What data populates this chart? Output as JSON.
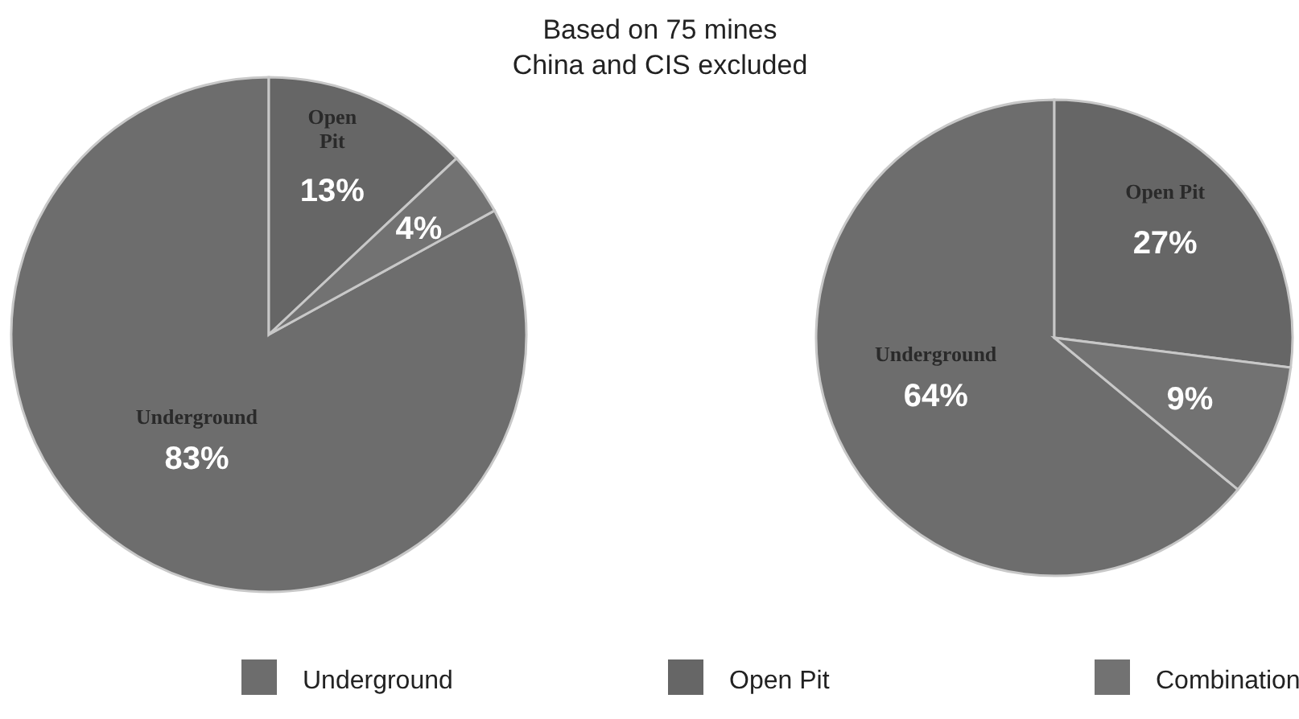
{
  "chart_data": [
    {
      "type": "pie",
      "title": "Based on 75 mines\nChina and CIS excluded",
      "categories": [
        "Underground",
        "Open Pit",
        null
      ],
      "values": [
        83,
        13,
        4
      ],
      "colors": [
        "#6d6d6d",
        "#666666",
        "#727272"
      ],
      "value_labels": [
        "83%",
        "13%",
        "4%"
      ]
    },
    {
      "type": "pie",
      "categories": [
        "Underground",
        "Open Pit",
        "Combination"
      ],
      "values": [
        64,
        27,
        9
      ],
      "colors": [
        "#6d6d6d",
        "#666666",
        "#727272"
      ],
      "value_labels": [
        "64%",
        "27%",
        "9%"
      ],
      "legend": "bottom"
    }
  ]
}
